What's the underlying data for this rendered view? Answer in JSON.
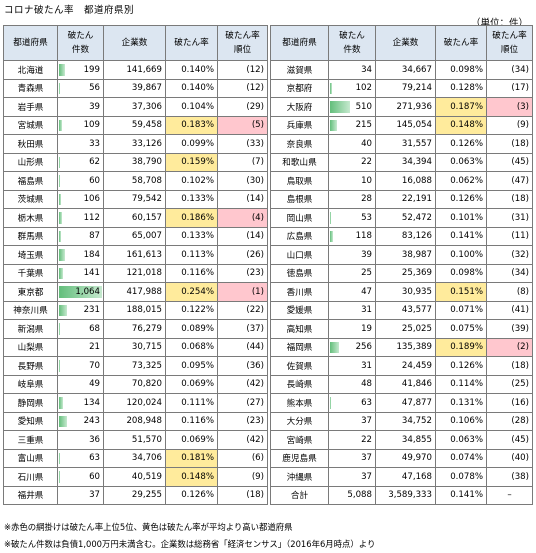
{
  "title": "コロナ破たん率　都道府県別",
  "unit": "（単位：件）",
  "headers": {
    "pref": "都道府県",
    "count": "破たん\n件数",
    "firms": "企業数",
    "rate": "破たん率",
    "rank": "破たん率\n順位"
  },
  "max_count": 1064,
  "left": [
    {
      "pref": "北海道",
      "count": "199",
      "firms": "141,669",
      "rate": "0.140%",
      "rank": "(12)",
      "hl": ""
    },
    {
      "pref": "青森県",
      "count": "56",
      "firms": "39,867",
      "rate": "0.140%",
      "rank": "(12)",
      "hl": ""
    },
    {
      "pref": "岩手県",
      "count": "39",
      "firms": "37,306",
      "rate": "0.104%",
      "rank": "(29)",
      "hl": ""
    },
    {
      "pref": "宮城県",
      "count": "109",
      "firms": "59,458",
      "rate": "0.183%",
      "rank": "(5)",
      "hl": "top"
    },
    {
      "pref": "秋田県",
      "count": "33",
      "firms": "33,126",
      "rate": "0.099%",
      "rank": "(33)",
      "hl": ""
    },
    {
      "pref": "山形県",
      "count": "62",
      "firms": "38,790",
      "rate": "0.159%",
      "rank": "(7)",
      "hl": "avg"
    },
    {
      "pref": "福島県",
      "count": "60",
      "firms": "58,708",
      "rate": "0.102%",
      "rank": "(30)",
      "hl": ""
    },
    {
      "pref": "茨城県",
      "count": "106",
      "firms": "79,542",
      "rate": "0.133%",
      "rank": "(14)",
      "hl": ""
    },
    {
      "pref": "栃木県",
      "count": "112",
      "firms": "60,157",
      "rate": "0.186%",
      "rank": "(4)",
      "hl": "top"
    },
    {
      "pref": "群馬県",
      "count": "87",
      "firms": "65,007",
      "rate": "0.133%",
      "rank": "(14)",
      "hl": ""
    },
    {
      "pref": "埼玉県",
      "count": "184",
      "firms": "161,613",
      "rate": "0.113%",
      "rank": "(26)",
      "hl": ""
    },
    {
      "pref": "千葉県",
      "count": "141",
      "firms": "121,018",
      "rate": "0.116%",
      "rank": "(23)",
      "hl": ""
    },
    {
      "pref": "東京都",
      "count": "1,064",
      "firms": "417,988",
      "rate": "0.254%",
      "rank": "(1)",
      "hl": "top"
    },
    {
      "pref": "神奈川県",
      "count": "231",
      "firms": "188,015",
      "rate": "0.122%",
      "rank": "(22)",
      "hl": ""
    },
    {
      "pref": "新潟県",
      "count": "68",
      "firms": "76,279",
      "rate": "0.089%",
      "rank": "(37)",
      "hl": ""
    },
    {
      "pref": "山梨県",
      "count": "21",
      "firms": "30,715",
      "rate": "0.068%",
      "rank": "(44)",
      "hl": ""
    },
    {
      "pref": "長野県",
      "count": "70",
      "firms": "73,325",
      "rate": "0.095%",
      "rank": "(36)",
      "hl": ""
    },
    {
      "pref": "岐阜県",
      "count": "49",
      "firms": "70,820",
      "rate": "0.069%",
      "rank": "(42)",
      "hl": ""
    },
    {
      "pref": "静岡県",
      "count": "134",
      "firms": "120,024",
      "rate": "0.111%",
      "rank": "(27)",
      "hl": ""
    },
    {
      "pref": "愛知県",
      "count": "243",
      "firms": "208,948",
      "rate": "0.116%",
      "rank": "(23)",
      "hl": ""
    },
    {
      "pref": "三重県",
      "count": "36",
      "firms": "51,570",
      "rate": "0.069%",
      "rank": "(42)",
      "hl": ""
    },
    {
      "pref": "富山県",
      "count": "63",
      "firms": "34,706",
      "rate": "0.181%",
      "rank": "(6)",
      "hl": "avg"
    },
    {
      "pref": "石川県",
      "count": "60",
      "firms": "40,519",
      "rate": "0.148%",
      "rank": "(9)",
      "hl": "avg"
    },
    {
      "pref": "福井県",
      "count": "37",
      "firms": "29,255",
      "rate": "0.126%",
      "rank": "(18)",
      "hl": ""
    }
  ],
  "right": [
    {
      "pref": "滋賀県",
      "count": "34",
      "firms": "34,667",
      "rate": "0.098%",
      "rank": "(34)",
      "hl": ""
    },
    {
      "pref": "京都府",
      "count": "102",
      "firms": "79,214",
      "rate": "0.128%",
      "rank": "(17)",
      "hl": ""
    },
    {
      "pref": "大阪府",
      "count": "510",
      "firms": "271,936",
      "rate": "0.187%",
      "rank": "(3)",
      "hl": "top"
    },
    {
      "pref": "兵庫県",
      "count": "215",
      "firms": "145,054",
      "rate": "0.148%",
      "rank": "(9)",
      "hl": "avg"
    },
    {
      "pref": "奈良県",
      "count": "40",
      "firms": "31,557",
      "rate": "0.126%",
      "rank": "(18)",
      "hl": ""
    },
    {
      "pref": "和歌山県",
      "count": "22",
      "firms": "34,394",
      "rate": "0.063%",
      "rank": "(45)",
      "hl": ""
    },
    {
      "pref": "鳥取県",
      "count": "10",
      "firms": "16,088",
      "rate": "0.062%",
      "rank": "(47)",
      "hl": ""
    },
    {
      "pref": "島根県",
      "count": "28",
      "firms": "22,191",
      "rate": "0.126%",
      "rank": "(18)",
      "hl": ""
    },
    {
      "pref": "岡山県",
      "count": "53",
      "firms": "52,472",
      "rate": "0.101%",
      "rank": "(31)",
      "hl": ""
    },
    {
      "pref": "広島県",
      "count": "118",
      "firms": "83,126",
      "rate": "0.141%",
      "rank": "(11)",
      "hl": ""
    },
    {
      "pref": "山口県",
      "count": "39",
      "firms": "38,987",
      "rate": "0.100%",
      "rank": "(32)",
      "hl": ""
    },
    {
      "pref": "徳島県",
      "count": "25",
      "firms": "25,369",
      "rate": "0.098%",
      "rank": "(34)",
      "hl": ""
    },
    {
      "pref": "香川県",
      "count": "47",
      "firms": "30,935",
      "rate": "0.151%",
      "rank": "(8)",
      "hl": "avg"
    },
    {
      "pref": "愛媛県",
      "count": "31",
      "firms": "43,577",
      "rate": "0.071%",
      "rank": "(41)",
      "hl": ""
    },
    {
      "pref": "高知県",
      "count": "19",
      "firms": "25,025",
      "rate": "0.075%",
      "rank": "(39)",
      "hl": ""
    },
    {
      "pref": "福岡県",
      "count": "256",
      "firms": "135,389",
      "rate": "0.189%",
      "rank": "(2)",
      "hl": "top"
    },
    {
      "pref": "佐賀県",
      "count": "31",
      "firms": "24,459",
      "rate": "0.126%",
      "rank": "(18)",
      "hl": ""
    },
    {
      "pref": "長崎県",
      "count": "48",
      "firms": "41,846",
      "rate": "0.114%",
      "rank": "(25)",
      "hl": ""
    },
    {
      "pref": "熊本県",
      "count": "63",
      "firms": "47,877",
      "rate": "0.131%",
      "rank": "(16)",
      "hl": ""
    },
    {
      "pref": "大分県",
      "count": "37",
      "firms": "34,752",
      "rate": "0.106%",
      "rank": "(28)",
      "hl": ""
    },
    {
      "pref": "宮崎県",
      "count": "22",
      "firms": "34,855",
      "rate": "0.063%",
      "rank": "(45)",
      "hl": ""
    },
    {
      "pref": "鹿児島県",
      "count": "37",
      "firms": "49,970",
      "rate": "0.074%",
      "rank": "(40)",
      "hl": ""
    },
    {
      "pref": "沖縄県",
      "count": "37",
      "firms": "47,168",
      "rate": "0.078%",
      "rank": "(38)",
      "hl": ""
    }
  ],
  "total": {
    "label": "合計",
    "count": "5,088",
    "firms": "3,589,333",
    "rate": "0.141%",
    "rank": "–"
  },
  "notes": [
    "※赤色の網掛けは破たん率上位5位、黄色は破たん率が平均より高い都道府県",
    "※破たん件数は負債1,000万円未満含む。企業数は総務省「経済センサス」（2016年6月時点）より"
  ],
  "colors": {
    "header_bg": "#dce6f1",
    "top5": "#ffc7ce",
    "above_avg": "#ffeb9c",
    "bar": "#63be7b"
  }
}
